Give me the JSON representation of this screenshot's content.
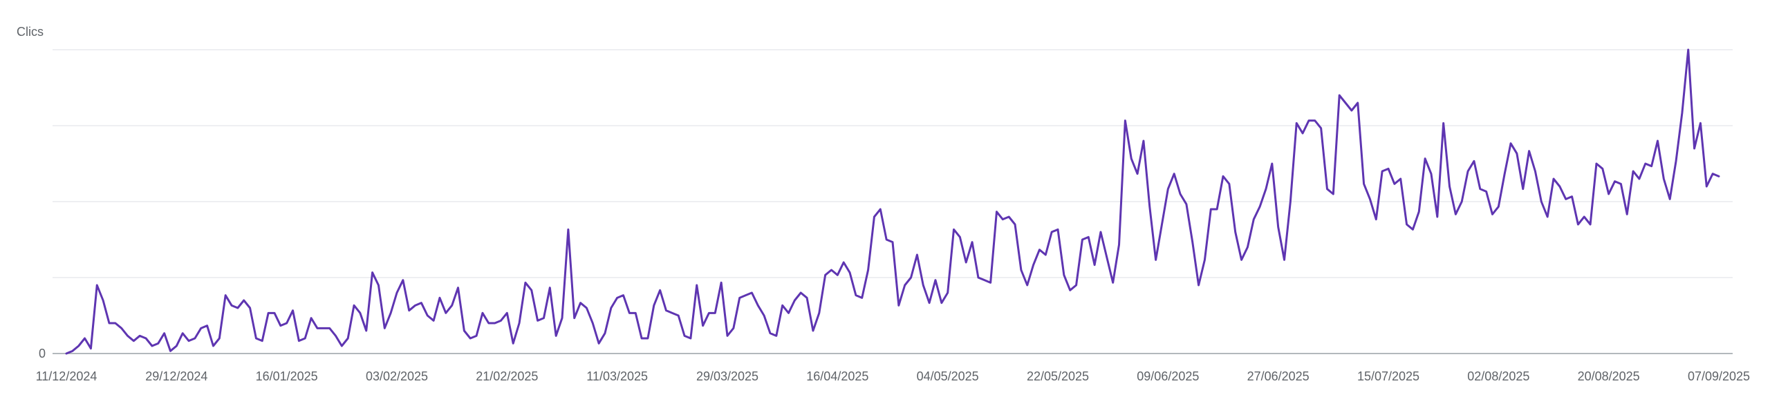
{
  "chart_data": {
    "type": "line",
    "ylabel": "Clics",
    "y_tick_labels": [
      "0"
    ],
    "x_tick_labels": [
      "11/12/2024",
      "29/12/2024",
      "16/01/2025",
      "03/02/2025",
      "21/02/2025",
      "11/03/2025",
      "29/03/2025",
      "16/04/2025",
      "04/05/2025",
      "22/05/2025",
      "09/06/2025",
      "27/06/2025",
      "15/07/2025",
      "02/08/2025",
      "20/08/2025",
      "07/09/2025"
    ],
    "grid": true,
    "color": "#5e35b1",
    "ylim": [
      0,
      12
    ],
    "series": [
      {
        "values": [
          0,
          0.1,
          0.3,
          0.6,
          0.2,
          2.7,
          2.1,
          1.2,
          1.2,
          1.0,
          0.7,
          0.5,
          0.7,
          0.6,
          0.3,
          0.4,
          0.8,
          0.1,
          0.3,
          0.8,
          0.5,
          0.6,
          1.0,
          1.1,
          0.3,
          0.6,
          2.3,
          1.9,
          1.8,
          2.1,
          1.8,
          0.6,
          0.5,
          1.6,
          1.6,
          1.1,
          1.2,
          1.7,
          0.5,
          0.6,
          1.4,
          1.0,
          1.0,
          1.0,
          0.7,
          0.3,
          0.6,
          1.9,
          1.6,
          0.9,
          3.2,
          2.7,
          1.0,
          1.6,
          2.4,
          2.9,
          1.7,
          1.9,
          2.0,
          1.5,
          1.3,
          2.2,
          1.6,
          1.9,
          2.6,
          0.9,
          0.6,
          0.7,
          1.6,
          1.2,
          1.2,
          1.3,
          1.6,
          0.4,
          1.2,
          2.8,
          2.5,
          1.3,
          1.4,
          2.6,
          0.7,
          1.4,
          4.9,
          1.4,
          2.0,
          1.8,
          1.2,
          0.4,
          0.8,
          1.8,
          2.2,
          2.3,
          1.6,
          1.6,
          0.6,
          0.6,
          1.9,
          2.5,
          1.7,
          1.6,
          1.5,
          0.7,
          0.6,
          2.7,
          1.1,
          1.6,
          1.6,
          2.8,
          0.7,
          1.0,
          2.2,
          2.3,
          2.4,
          1.9,
          1.5,
          0.8,
          0.7,
          1.9,
          1.6,
          2.1,
          2.4,
          2.2,
          0.9,
          1.6,
          3.1,
          3.3,
          3.1,
          3.6,
          3.2,
          2.3,
          2.2,
          3.3,
          5.4,
          5.7,
          4.5,
          4.4,
          1.9,
          2.7,
          3.0,
          3.9,
          2.7,
          2.0,
          2.9,
          2.0,
          2.4,
          4.9,
          4.6,
          3.6,
          4.4,
          3.0,
          2.9,
          2.8,
          5.6,
          5.3,
          5.4,
          5.1,
          3.3,
          2.7,
          3.5,
          4.1,
          3.9,
          4.8,
          4.9,
          3.1,
          2.5,
          2.7,
          4.5,
          4.6,
          3.5,
          4.8,
          3.8,
          2.8,
          4.3,
          9.2,
          7.7,
          7.1,
          8.4,
          5.8,
          3.7,
          5.1,
          6.5,
          7.1,
          6.3,
          5.9,
          4.4,
          2.7,
          3.7,
          5.7,
          5.7,
          7.0,
          6.7,
          4.8,
          3.7,
          4.2,
          5.3,
          5.8,
          6.5,
          7.5,
          5.0,
          3.7,
          6.0,
          9.1,
          8.7,
          9.2,
          9.2,
          8.9,
          6.5,
          6.3,
          10.2,
          9.9,
          9.6,
          9.9,
          6.7,
          6.1,
          5.3,
          7.2,
          7.3,
          6.7,
          6.9,
          5.1,
          4.9,
          5.6,
          7.7,
          7.1,
          5.4,
          9.1,
          6.6,
          5.5,
          6.0,
          7.2,
          7.6,
          6.5,
          6.4,
          5.5,
          5.8,
          7.1,
          8.3,
          7.9,
          6.5,
          8.0,
          7.2,
          6.0,
          5.4,
          6.9,
          6.6,
          6.1,
          6.2,
          5.1,
          5.4,
          5.1,
          7.5,
          7.3,
          6.3,
          6.8,
          6.7,
          5.5,
          7.2,
          6.9,
          7.5,
          7.4,
          8.4,
          6.9,
          6.1,
          7.6,
          9.5,
          12.0,
          8.1,
          9.1,
          6.6,
          7.1,
          7.0
        ]
      }
    ]
  }
}
